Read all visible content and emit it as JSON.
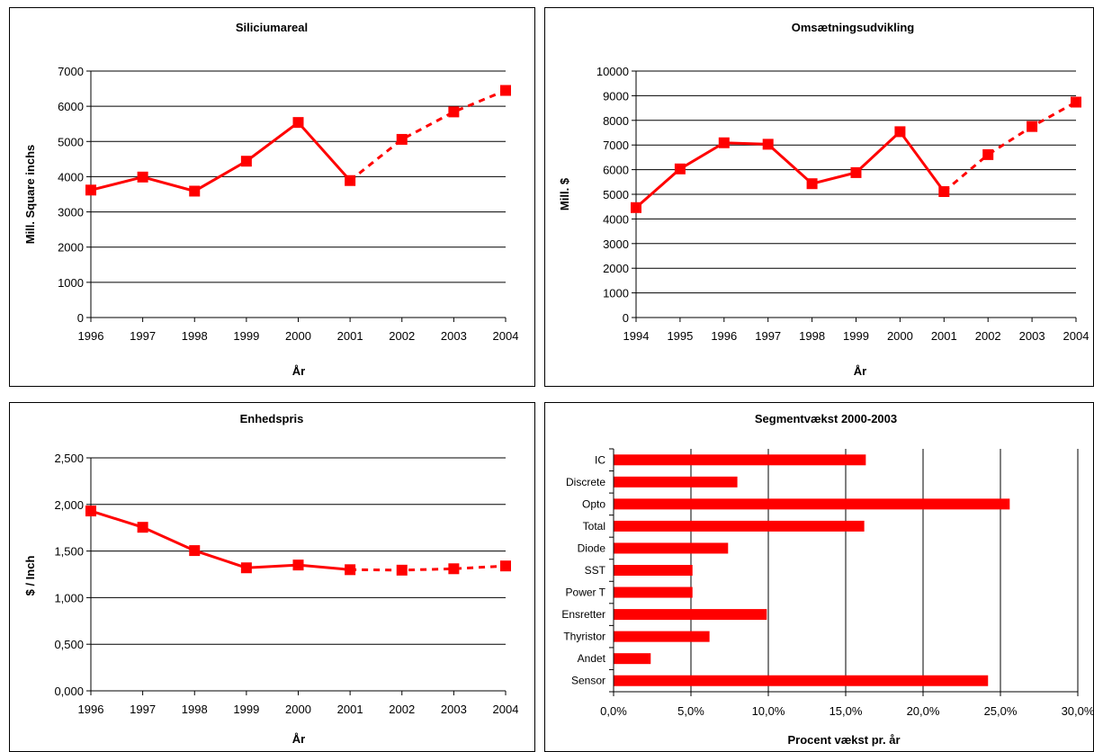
{
  "colors": {
    "series": "#ff0000",
    "axis": "#000000",
    "grid": "#000000",
    "background": "#ffffff"
  },
  "chart_data": [
    {
      "type": "line",
      "title": "Siliciumareal",
      "xlabel": "År",
      "ylabel": "Mill. Square inchs",
      "x": [
        "1996",
        "1997",
        "1998",
        "1999",
        "2000",
        "2001",
        "2002",
        "2003",
        "2004"
      ],
      "ylim": [
        0,
        7000
      ],
      "yticks": [
        0,
        1000,
        2000,
        3000,
        4000,
        5000,
        6000,
        7000
      ],
      "ytick_labels": [
        "0",
        "1000",
        "2000",
        "3000",
        "4000",
        "5000",
        "6000",
        "7000"
      ],
      "grid": true,
      "marker": "square",
      "solid_until_index": 5,
      "series": [
        {
          "values": [
            3620,
            3990,
            3590,
            4440,
            5540,
            3890,
            5060,
            5840,
            6450
          ]
        }
      ]
    },
    {
      "type": "line",
      "title": "Omsætningsudvikling",
      "xlabel": "År",
      "ylabel": "Mill. $",
      "x": [
        "1994",
        "1995",
        "1996",
        "1997",
        "1998",
        "1999",
        "2000",
        "2001",
        "2002",
        "2003",
        "2004"
      ],
      "ylim": [
        0,
        10000
      ],
      "yticks": [
        0,
        1000,
        2000,
        3000,
        4000,
        5000,
        6000,
        7000,
        8000,
        9000,
        10000
      ],
      "ytick_labels": [
        "0",
        "1000",
        "2000",
        "3000",
        "4000",
        "5000",
        "6000",
        "7000",
        "8000",
        "9000",
        "10000"
      ],
      "grid": true,
      "marker": "square",
      "solid_until_index": 7,
      "series": [
        {
          "values": [
            4460,
            6030,
            7090,
            7030,
            5430,
            5880,
            7540,
            5110,
            6610,
            7750,
            8740
          ]
        }
      ]
    },
    {
      "type": "line",
      "title": "Enhedspris",
      "xlabel": "År",
      "ylabel": "$ / Inch",
      "x": [
        "1996",
        "1997",
        "1998",
        "1999",
        "2000",
        "2001",
        "2002",
        "2003",
        "2004"
      ],
      "ylim": [
        0,
        2.5
      ],
      "yticks": [
        0,
        0.5,
        1.0,
        1.5,
        2.0,
        2.5
      ],
      "ytick_labels": [
        "0,000",
        "0,500",
        "1,000",
        "1,500",
        "2,000",
        "2,500"
      ],
      "grid": true,
      "marker": "square",
      "solid_until_index": 5,
      "series": [
        {
          "values": [
            1.93,
            1.755,
            1.505,
            1.32,
            1.35,
            1.3,
            1.295,
            1.31,
            1.34
          ]
        }
      ]
    },
    {
      "type": "bar",
      "orientation": "horizontal",
      "title": "Segmentvækst 2000-2003",
      "xlabel": "Procent vækst pr. år",
      "ylabel": "",
      "categories": [
        "IC",
        "Discrete",
        "Opto",
        "Total",
        "Diode",
        "SST",
        "Power T",
        "Ensretter",
        "Thyristor",
        "Andet",
        "Sensor"
      ],
      "values": [
        16.3,
        8.0,
        25.6,
        16.2,
        7.4,
        5.1,
        5.1,
        9.9,
        6.2,
        2.4,
        24.2
      ],
      "xlim": [
        0,
        30
      ],
      "xticks": [
        0,
        5,
        10,
        15,
        20,
        25,
        30
      ],
      "xtick_labels": [
        "0,0%",
        "5,0%",
        "10,0%",
        "15,0%",
        "20,0%",
        "25,0%",
        "30,0%"
      ],
      "grid": true
    }
  ]
}
